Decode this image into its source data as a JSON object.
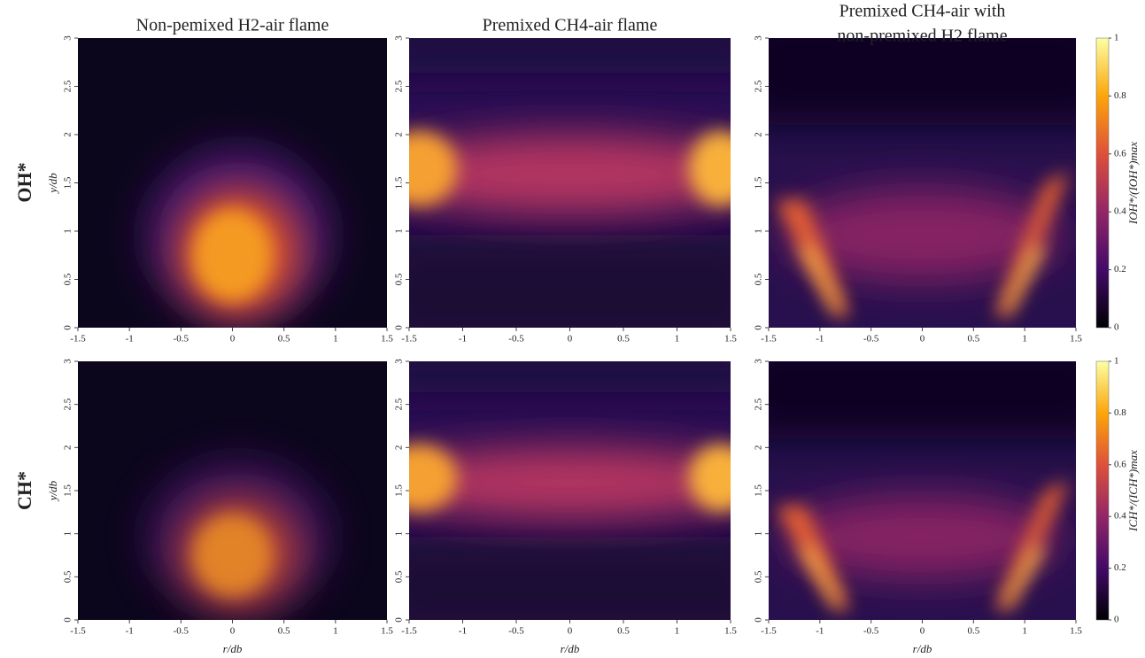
{
  "row_labels": [
    "OH*",
    "CH*"
  ],
  "chart_data": [
    {
      "type": "heatmap",
      "title": [
        "Non-pemixed H2-air flame"
      ],
      "xlim": [
        -1.5,
        1.5
      ],
      "xticks": [
        -1.5,
        -1,
        -0.5,
        0,
        0.5,
        1,
        1.5
      ],
      "ylim": [
        0,
        3
      ],
      "yticks": [
        0,
        0.5,
        1,
        1.5,
        2,
        2.5,
        3
      ],
      "ylabel": "y/db"
    },
    {
      "type": "heatmap",
      "title": [
        "Premixed CH4-air flame"
      ],
      "xlim": [
        -1.5,
        1.5
      ],
      "xticks": [
        -1.5,
        -1,
        -0.5,
        0,
        0.5,
        1,
        1.5
      ],
      "ylim": [
        0,
        3
      ],
      "yticks": [
        0,
        0.5,
        1,
        1.5,
        2,
        2.5,
        3
      ]
    },
    {
      "type": "heatmap",
      "title": [
        "Premixed CH4-air with",
        "non-premixed H2 flame"
      ],
      "xlim": [
        -1.5,
        1.5
      ],
      "xticks": [
        -1.5,
        -1,
        -0.5,
        0,
        0.5,
        1,
        1.5
      ],
      "ylim": [
        0,
        3
      ],
      "yticks": [
        0,
        0.5,
        1,
        1.5,
        2,
        2.5,
        3
      ]
    },
    {
      "type": "heatmap",
      "xlim": [
        -1.5,
        1.5
      ],
      "xticks": [
        -1.5,
        -1,
        -0.5,
        0,
        0.5,
        1,
        1.5
      ],
      "ylim": [
        0,
        3
      ],
      "yticks": [
        0,
        0.5,
        1,
        1.5,
        2,
        2.5,
        3
      ],
      "xlabel": "r/db",
      "ylabel": "y/db"
    },
    {
      "type": "heatmap",
      "xlim": [
        -1.5,
        1.5
      ],
      "xticks": [
        -1.5,
        -1,
        -0.5,
        0,
        0.5,
        1,
        1.5
      ],
      "ylim": [
        0,
        3
      ],
      "yticks": [
        0,
        0.5,
        1,
        1.5,
        2,
        2.5,
        3
      ],
      "xlabel": "r/db"
    },
    {
      "type": "heatmap",
      "xlim": [
        -1.5,
        1.5
      ],
      "xticks": [
        -1.5,
        -1,
        -0.5,
        0,
        0.5,
        1,
        1.5
      ],
      "ylim": [
        0,
        3
      ],
      "yticks": [
        0,
        0.5,
        1,
        1.5,
        2,
        2.5,
        3
      ],
      "xlabel": "r/db"
    },
    {
      "type": "colorbar",
      "ylim": [
        0,
        1
      ],
      "yticks": [
        0,
        0.2,
        0.4,
        0.6,
        0.8,
        1
      ],
      "ylabel": "IOH*/(IOH*)max",
      "colormap": [
        "#000004",
        "#420a68",
        "#932667",
        "#dd513a",
        "#fca50a",
        "#fcffa4"
      ]
    },
    {
      "type": "colorbar",
      "ylim": [
        0,
        1
      ],
      "yticks": [
        0,
        0.2,
        0.4,
        0.6,
        0.8,
        1
      ],
      "ylabel": "ICH*/(ICH*)max",
      "colormap": [
        "#000004",
        "#420a68",
        "#932667",
        "#dd513a",
        "#fca50a",
        "#fcffa4"
      ]
    }
  ]
}
